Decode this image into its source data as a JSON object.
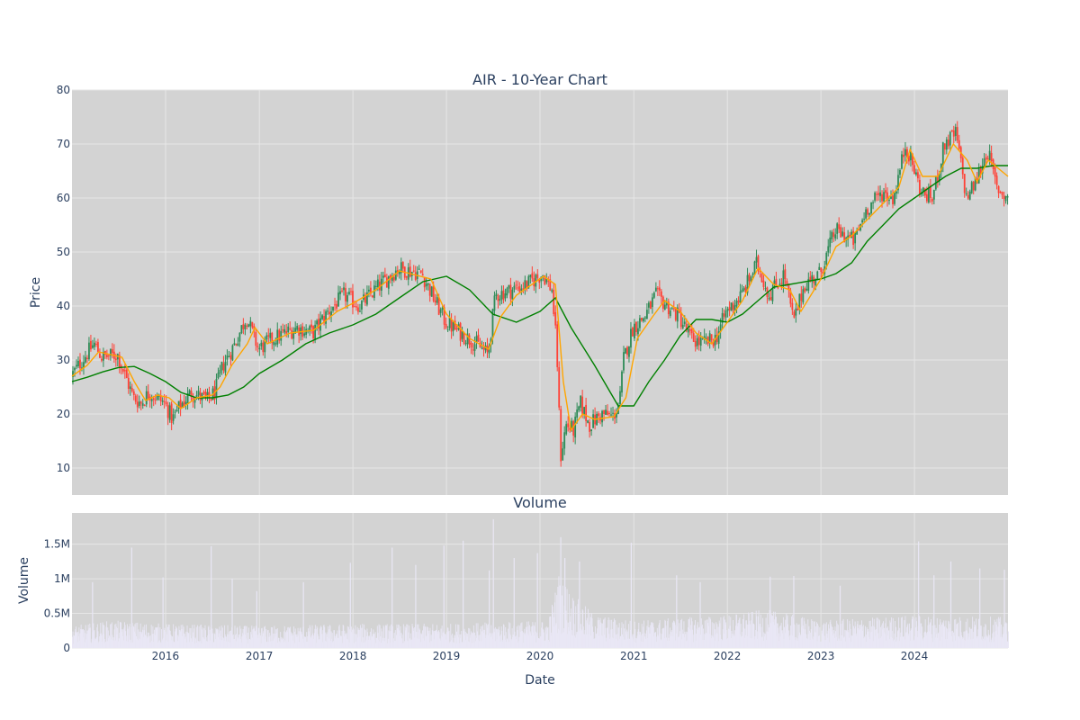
{
  "chart_data": [
    {
      "type": "candlestick",
      "title": "AIR - 10-Year Chart",
      "ylabel": "Price",
      "ylim": [
        5,
        80
      ],
      "y_ticks": [
        "10",
        "20",
        "30",
        "40",
        "50",
        "60",
        "70",
        "80"
      ],
      "x_ticks": [
        "2016",
        "2017",
        "2018",
        "2019",
        "2020",
        "2021",
        "2022",
        "2023",
        "2024"
      ],
      "x_range": [
        "2015-01-01",
        "2024-12-31"
      ],
      "grid": true,
      "colors": {
        "background": "#d3d3d3",
        "up": "#2e8b57",
        "down": "#ff4136",
        "ma_short": "#ffa500",
        "ma_long": "#008000",
        "grid": "#e6e6e6",
        "text": "#2a3f5f"
      },
      "price_path": [
        [
          "2015-01-01",
          27
        ],
        [
          "2015-03-01",
          31
        ],
        [
          "2015-04-01",
          33
        ],
        [
          "2015-05-01",
          30.5
        ],
        [
          "2015-07-01",
          31
        ],
        [
          "2015-08-01",
          27
        ],
        [
          "2015-09-01",
          23
        ],
        [
          "2015-10-01",
          22
        ],
        [
          "2015-11-01",
          24
        ],
        [
          "2016-01-01",
          22
        ],
        [
          "2016-02-01",
          19
        ],
        [
          "2016-03-01",
          21.5
        ],
        [
          "2016-04-15",
          24
        ],
        [
          "2016-06-15",
          22.5
        ],
        [
          "2016-07-15",
          24
        ],
        [
          "2016-08-15",
          29
        ],
        [
          "2016-10-01",
          33
        ],
        [
          "2016-11-15",
          38
        ],
        [
          "2017-01-01",
          32
        ],
        [
          "2017-03-01",
          34
        ],
        [
          "2017-06-01",
          36
        ],
        [
          "2017-08-01",
          35
        ],
        [
          "2017-10-01",
          39
        ],
        [
          "2017-12-01",
          42
        ],
        [
          "2018-02-01",
          40
        ],
        [
          "2018-04-01",
          43
        ],
        [
          "2018-07-01",
          47
        ],
        [
          "2018-10-01",
          46
        ],
        [
          "2018-12-01",
          40
        ],
        [
          "2019-01-01",
          37
        ],
        [
          "2019-03-01",
          35
        ],
        [
          "2019-05-01",
          33
        ],
        [
          "2019-06-15",
          31
        ],
        [
          "2019-07-15",
          42
        ],
        [
          "2019-09-15",
          43
        ],
        [
          "2019-11-15",
          44
        ],
        [
          "2020-01-15",
          46
        ],
        [
          "2020-02-20",
          43
        ],
        [
          "2020-03-10",
          32
        ],
        [
          "2020-03-25",
          12
        ],
        [
          "2020-04-15",
          18
        ],
        [
          "2020-05-15",
          17
        ],
        [
          "2020-06-10",
          22
        ],
        [
          "2020-07-15",
          18
        ],
        [
          "2020-09-01",
          20
        ],
        [
          "2020-10-15",
          19.5
        ],
        [
          "2020-11-10",
          22
        ],
        [
          "2020-11-25",
          30
        ],
        [
          "2021-01-01",
          36
        ],
        [
          "2021-02-15",
          38
        ],
        [
          "2021-04-01",
          42
        ],
        [
          "2021-05-15",
          40
        ],
        [
          "2021-07-01",
          38
        ],
        [
          "2021-08-15",
          34
        ],
        [
          "2021-10-01",
          33
        ],
        [
          "2021-11-20",
          34
        ],
        [
          "2022-01-01",
          39
        ],
        [
          "2022-03-01",
          42
        ],
        [
          "2022-05-01",
          48
        ],
        [
          "2022-06-15",
          42
        ],
        [
          "2022-08-15",
          46
        ],
        [
          "2022-09-20",
          37
        ],
        [
          "2022-11-01",
          44
        ],
        [
          "2023-01-01",
          46
        ],
        [
          "2023-03-01",
          54
        ],
        [
          "2023-05-15",
          52
        ],
        [
          "2023-07-01",
          58
        ],
        [
          "2023-09-01",
          61
        ],
        [
          "2023-10-15",
          60
        ],
        [
          "2023-12-01",
          70
        ],
        [
          "2024-02-01",
          61
        ],
        [
          "2024-03-15",
          60
        ],
        [
          "2024-05-01",
          70
        ],
        [
          "2024-06-15",
          72
        ],
        [
          "2024-07-25",
          60
        ],
        [
          "2024-09-01",
          63
        ],
        [
          "2024-10-15",
          69
        ],
        [
          "2024-11-20",
          62
        ],
        [
          "2024-12-31",
          60
        ]
      ],
      "ma_short": [
        [
          "2015-01-01",
          27
        ],
        [
          "2015-03-01",
          29
        ],
        [
          "2015-04-15",
          31.5
        ],
        [
          "2015-06-01",
          31
        ],
        [
          "2015-07-15",
          30.5
        ],
        [
          "2015-09-01",
          26
        ],
        [
          "2015-10-15",
          22.5
        ],
        [
          "2015-12-01",
          23.5
        ],
        [
          "2016-01-15",
          23
        ],
        [
          "2016-03-01",
          21
        ],
        [
          "2016-05-01",
          23
        ],
        [
          "2016-07-01",
          23.5
        ],
        [
          "2016-08-01",
          25
        ],
        [
          "2016-09-15",
          29
        ],
        [
          "2016-11-15",
          33
        ],
        [
          "2016-12-15",
          36
        ],
        [
          "2017-02-01",
          33
        ],
        [
          "2017-05-01",
          35
        ],
        [
          "2017-08-01",
          35.5
        ],
        [
          "2017-11-01",
          39
        ],
        [
          "2018-01-01",
          40.5
        ],
        [
          "2018-04-01",
          43
        ],
        [
          "2018-07-01",
          46.5
        ],
        [
          "2018-11-01",
          45
        ],
        [
          "2019-01-01",
          38.5
        ],
        [
          "2019-04-01",
          34
        ],
        [
          "2019-06-15",
          32
        ],
        [
          "2019-08-01",
          38
        ],
        [
          "2019-10-01",
          42
        ],
        [
          "2020-01-15",
          45.5
        ],
        [
          "2020-03-01",
          44
        ],
        [
          "2020-04-01",
          26
        ],
        [
          "2020-05-01",
          17
        ],
        [
          "2020-06-15",
          20
        ],
        [
          "2020-08-01",
          19
        ],
        [
          "2020-10-15",
          19.5
        ],
        [
          "2020-12-01",
          23
        ],
        [
          "2021-01-15",
          34
        ],
        [
          "2021-03-15",
          38
        ],
        [
          "2021-05-01",
          41
        ],
        [
          "2021-07-01",
          39
        ],
        [
          "2021-09-01",
          35
        ],
        [
          "2021-11-01",
          33
        ],
        [
          "2022-01-01",
          37
        ],
        [
          "2022-03-01",
          41
        ],
        [
          "2022-05-01",
          47
        ],
        [
          "2022-07-01",
          44
        ],
        [
          "2022-09-01",
          43
        ],
        [
          "2022-10-15",
          39
        ],
        [
          "2023-01-01",
          45
        ],
        [
          "2023-03-01",
          51
        ],
        [
          "2023-05-01",
          53
        ],
        [
          "2023-07-01",
          56
        ],
        [
          "2023-09-01",
          59
        ],
        [
          "2023-11-01",
          62
        ],
        [
          "2023-12-15",
          69
        ],
        [
          "2024-02-01",
          64
        ],
        [
          "2024-04-01",
          64
        ],
        [
          "2024-06-01",
          70
        ],
        [
          "2024-07-25",
          67
        ],
        [
          "2024-09-01",
          63
        ],
        [
          "2024-10-15",
          67
        ],
        [
          "2024-12-31",
          64
        ]
      ],
      "ma_long": [
        [
          "2015-01-01",
          26
        ],
        [
          "2015-03-01",
          26.8
        ],
        [
          "2015-05-01",
          27.8
        ],
        [
          "2015-07-01",
          28.6
        ],
        [
          "2015-09-01",
          28.8
        ],
        [
          "2015-11-01",
          27.5
        ],
        [
          "2016-01-01",
          26
        ],
        [
          "2016-03-01",
          24
        ],
        [
          "2016-05-01",
          23
        ],
        [
          "2016-07-01",
          23
        ],
        [
          "2016-09-01",
          23.5
        ],
        [
          "2016-11-01",
          25
        ],
        [
          "2017-01-01",
          27.5
        ],
        [
          "2017-04-01",
          30
        ],
        [
          "2017-07-01",
          33
        ],
        [
          "2017-10-01",
          35
        ],
        [
          "2018-01-01",
          36.5
        ],
        [
          "2018-04-01",
          38.5
        ],
        [
          "2018-07-01",
          41.5
        ],
        [
          "2018-10-01",
          44.5
        ],
        [
          "2019-01-01",
          45.5
        ],
        [
          "2019-04-01",
          43
        ],
        [
          "2019-07-01",
          38.5
        ],
        [
          "2019-10-01",
          37
        ],
        [
          "2020-01-01",
          39
        ],
        [
          "2020-03-01",
          41.5
        ],
        [
          "2020-05-01",
          36
        ],
        [
          "2020-08-01",
          29
        ],
        [
          "2020-11-01",
          21.5
        ],
        [
          "2021-01-01",
          21.5
        ],
        [
          "2021-03-01",
          26
        ],
        [
          "2021-05-01",
          30
        ],
        [
          "2021-07-01",
          34.5
        ],
        [
          "2021-09-01",
          37.5
        ],
        [
          "2021-11-01",
          37.5
        ],
        [
          "2022-01-01",
          37
        ],
        [
          "2022-03-01",
          38.5
        ],
        [
          "2022-05-01",
          41
        ],
        [
          "2022-07-01",
          43.5
        ],
        [
          "2022-09-01",
          44
        ],
        [
          "2022-11-01",
          44.5
        ],
        [
          "2023-01-01",
          45
        ],
        [
          "2023-03-01",
          46
        ],
        [
          "2023-05-01",
          48
        ],
        [
          "2023-07-01",
          52
        ],
        [
          "2023-09-01",
          55
        ],
        [
          "2023-11-01",
          58
        ],
        [
          "2024-01-01",
          60
        ],
        [
          "2024-03-01",
          62
        ],
        [
          "2024-05-01",
          64
        ],
        [
          "2024-07-01",
          65.5
        ],
        [
          "2024-09-01",
          65.5
        ],
        [
          "2024-11-01",
          66
        ],
        [
          "2024-12-31",
          66
        ]
      ]
    },
    {
      "type": "bar",
      "title": "Volume",
      "xlabel": "Date",
      "ylabel": "Volume",
      "ylim": [
        0,
        1950000
      ],
      "y_ticks": [
        {
          "value": 0,
          "label": "0"
        },
        {
          "value": 500000,
          "label": "0.5M"
        },
        {
          "value": 1000000,
          "label": "1M"
        },
        {
          "value": 1500000,
          "label": "1.5M"
        }
      ],
      "colors": {
        "bar": "#e9e7f5",
        "background": "#d3d3d3"
      },
      "base_level": [
        [
          "2015-01-01",
          200000
        ],
        [
          "2015-06-01",
          250000
        ],
        [
          "2016-01-01",
          220000
        ],
        [
          "2017-01-01",
          200000
        ],
        [
          "2018-01-01",
          220000
        ],
        [
          "2019-01-01",
          220000
        ],
        [
          "2020-02-01",
          250000
        ],
        [
          "2020-03-15",
          700000
        ],
        [
          "2020-05-01",
          500000
        ],
        [
          "2020-08-01",
          300000
        ],
        [
          "2021-01-01",
          250000
        ],
        [
          "2022-01-01",
          300000
        ],
        [
          "2022-06-01",
          350000
        ],
        [
          "2023-01-01",
          250000
        ],
        [
          "2024-01-01",
          300000
        ],
        [
          "2024-12-31",
          280000
        ]
      ],
      "spikes": [
        [
          "2015-03-20",
          950000
        ],
        [
          "2015-08-20",
          1450000
        ],
        [
          "2015-12-20",
          1020000
        ],
        [
          "2016-06-25",
          1470000
        ],
        [
          "2016-09-15",
          1000000
        ],
        [
          "2016-12-20",
          820000
        ],
        [
          "2017-06-20",
          950000
        ],
        [
          "2017-12-20",
          1230000
        ],
        [
          "2018-06-01",
          1450000
        ],
        [
          "2018-09-01",
          1200000
        ],
        [
          "2018-12-20",
          1480000
        ],
        [
          "2019-03-05",
          1550000
        ],
        [
          "2019-06-15",
          1120000
        ],
        [
          "2019-07-01",
          1860000
        ],
        [
          "2019-09-20",
          1300000
        ],
        [
          "2019-12-20",
          1370000
        ],
        [
          "2020-03-20",
          1600000
        ],
        [
          "2020-04-05",
          1300000
        ],
        [
          "2020-06-01",
          1250000
        ],
        [
          "2020-12-20",
          1520000
        ],
        [
          "2021-06-15",
          1050000
        ],
        [
          "2021-09-15",
          950000
        ],
        [
          "2022-06-15",
          1030000
        ],
        [
          "2022-09-15",
          1040000
        ],
        [
          "2023-03-15",
          900000
        ],
        [
          "2024-01-15",
          1540000
        ],
        [
          "2024-03-15",
          1050000
        ],
        [
          "2024-05-20",
          1250000
        ],
        [
          "2024-09-10",
          1150000
        ],
        [
          "2024-12-15",
          1130000
        ]
      ]
    }
  ]
}
